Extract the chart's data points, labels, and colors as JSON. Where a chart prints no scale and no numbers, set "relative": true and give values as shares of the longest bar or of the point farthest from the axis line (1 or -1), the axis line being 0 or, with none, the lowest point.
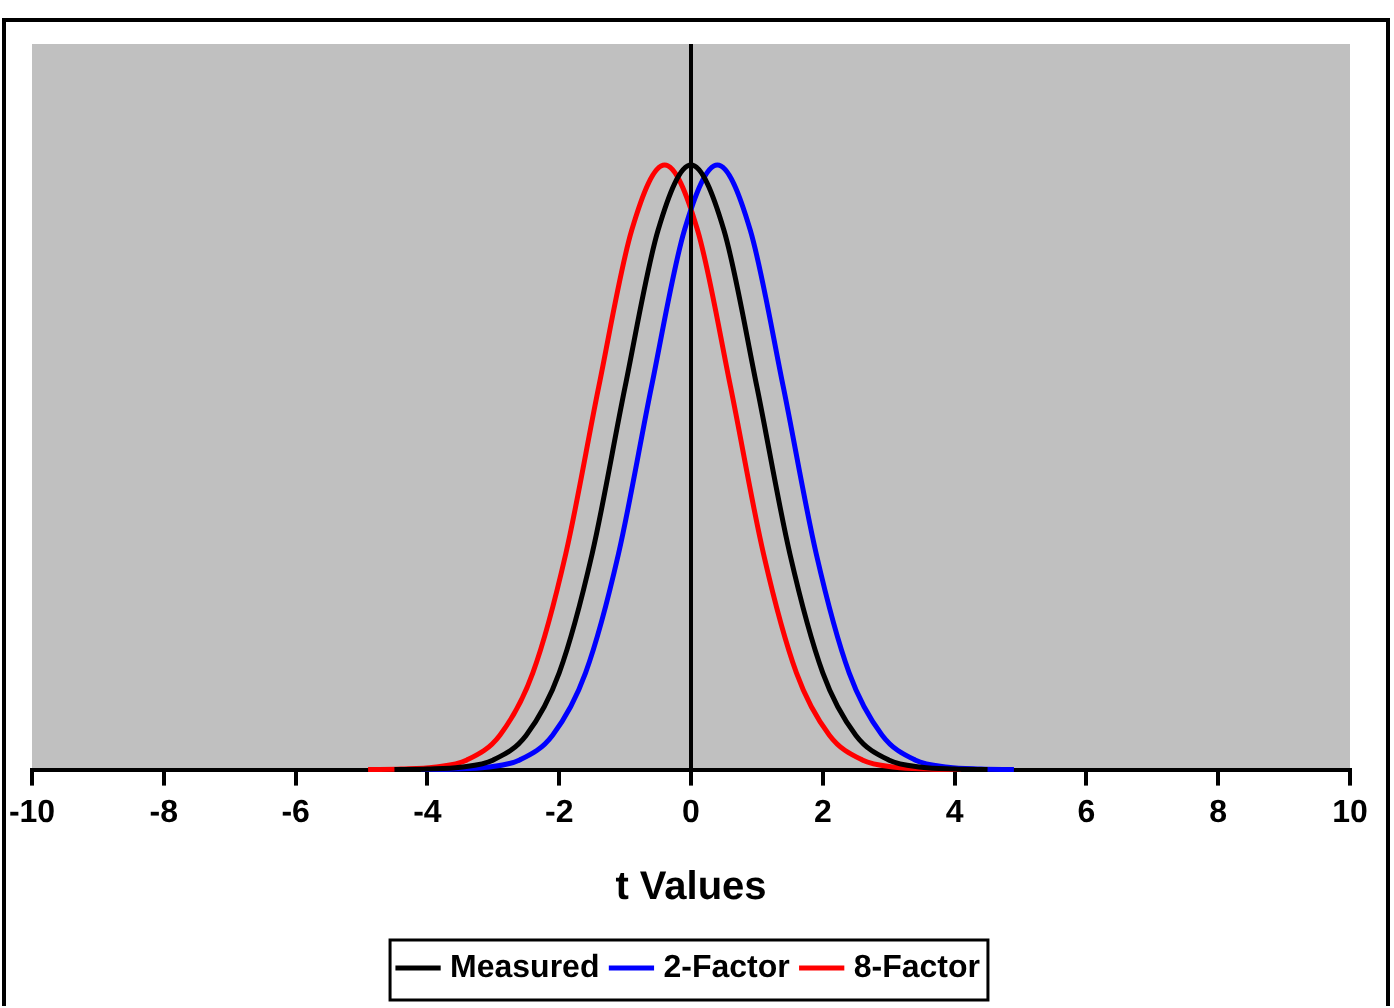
{
  "chart_data": {
    "type": "line",
    "xlabel": "t Values",
    "relative": true,
    "xlim": [
      -10,
      10
    ],
    "xticks": [
      -10,
      -8,
      -6,
      -4,
      -2,
      0,
      2,
      4,
      6,
      8,
      10
    ],
    "grid": false,
    "legend": "bottom",
    "marker": "none",
    "line_style": "solid",
    "ref_lines": [
      {
        "axis": "x",
        "value": 0,
        "color": "#000000"
      }
    ],
    "series": [
      {
        "name": "Measured",
        "color": "#000000",
        "x": [
          -4.5,
          -4,
          -3.5,
          -3,
          -2.5,
          -2,
          -1.5,
          -1,
          -0.5,
          0,
          0.5,
          1,
          1.5,
          2,
          2.5,
          3,
          3.5,
          4,
          4.5
        ],
        "values": [
          0,
          0.001,
          0.004,
          0.016,
          0.057,
          0.16,
          0.357,
          0.633,
          0.892,
          1,
          0.892,
          0.633,
          0.357,
          0.16,
          0.057,
          0.016,
          0.004,
          0.001,
          0
        ]
      },
      {
        "name": "2-Factor",
        "color": "#0000ff",
        "x": [
          -4.1,
          -3.6,
          -3.1,
          -2.6,
          -2.1,
          -1.6,
          -1.1,
          -0.6,
          -0.1,
          0.4,
          0.9,
          1.4,
          1.9,
          2.4,
          2.9,
          3.4,
          3.9,
          4.4,
          4.9
        ],
        "values": [
          0,
          0.001,
          0.004,
          0.016,
          0.057,
          0.16,
          0.357,
          0.633,
          0.892,
          1,
          0.892,
          0.633,
          0.357,
          0.16,
          0.057,
          0.016,
          0.004,
          0.001,
          0
        ]
      },
      {
        "name": "8-Factor",
        "color": "#ff0000",
        "x": [
          -4.9,
          -4.4,
          -3.9,
          -3.4,
          -2.9,
          -2.4,
          -1.9,
          -1.4,
          -0.9,
          -0.4,
          0.1,
          0.6,
          1.1,
          1.6,
          2.1,
          2.6,
          3.1,
          3.6,
          4.1
        ],
        "values": [
          0,
          0.001,
          0.004,
          0.016,
          0.057,
          0.16,
          0.357,
          0.633,
          0.892,
          1,
          0.892,
          0.633,
          0.357,
          0.16,
          0.057,
          0.016,
          0.004,
          0.001,
          0
        ]
      }
    ]
  }
}
